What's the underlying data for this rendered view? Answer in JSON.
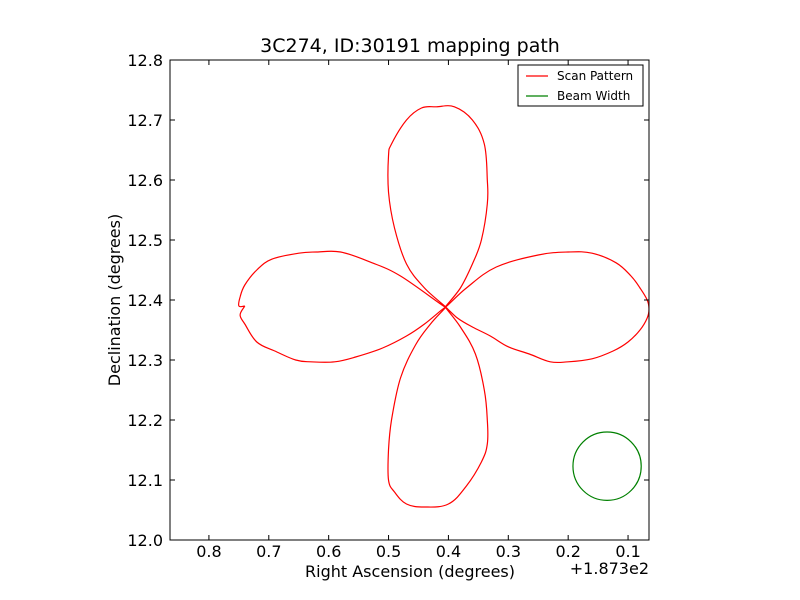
{
  "chart_data": {
    "type": "line",
    "title": "3C274, ID:30191 mapping path",
    "xlabel": "Right Ascension (degrees)",
    "ylabel": "Declination (degrees)",
    "x_offset_label": "+1.873e2",
    "xlim": [
      0.865,
      0.065
    ],
    "ylim": [
      12.0,
      12.8
    ],
    "x_ticks": [
      0.8,
      0.7,
      0.6,
      0.5,
      0.4,
      0.3,
      0.2,
      0.1
    ],
    "x_tick_labels": [
      "0.8",
      "0.7",
      "0.6",
      "0.5",
      "0.4",
      "0.3",
      "0.2",
      "0.1"
    ],
    "y_ticks": [
      12.0,
      12.1,
      12.2,
      12.3,
      12.4,
      12.5,
      12.6,
      12.7,
      12.8
    ],
    "y_tick_labels": [
      "12.0",
      "12.1",
      "12.2",
      "12.3",
      "12.4",
      "12.5",
      "12.6",
      "12.7",
      "12.8"
    ],
    "grid": false,
    "legend_position": "top-right",
    "series": [
      {
        "name": "Scan Pattern",
        "color": "#ff0000",
        "x": [
          0.74,
          0.75,
          0.748,
          0.74,
          0.72,
          0.695,
          0.65,
          0.62,
          0.58,
          0.53,
          0.48,
          0.405,
          0.44,
          0.47,
          0.49,
          0.5,
          0.5,
          0.495,
          0.47,
          0.445,
          0.42,
          0.39,
          0.36,
          0.34,
          0.335,
          0.335,
          0.345,
          0.36,
          0.38,
          0.405,
          0.37,
          0.32,
          0.25,
          0.2,
          0.16,
          0.12,
          0.095,
          0.08,
          0.068,
          0.065,
          0.068,
          0.08,
          0.1,
          0.125,
          0.16,
          0.2,
          0.23,
          0.265,
          0.3,
          0.33,
          0.36,
          0.385,
          0.405,
          0.38,
          0.355,
          0.34,
          0.335,
          0.335,
          0.345,
          0.37,
          0.4,
          0.44,
          0.47,
          0.49,
          0.5,
          0.5,
          0.495,
          0.48,
          0.455,
          0.43,
          0.405,
          0.44,
          0.47,
          0.51,
          0.555,
          0.59,
          0.63,
          0.655,
          0.69,
          0.72,
          0.74,
          0.748,
          0.74
        ],
        "y": [
          12.39,
          12.39,
          12.405,
          12.425,
          12.45,
          12.468,
          12.478,
          12.48,
          12.48,
          12.463,
          12.44,
          12.388,
          12.42,
          12.46,
          12.52,
          12.58,
          12.64,
          12.66,
          12.7,
          12.72,
          12.722,
          12.722,
          12.7,
          12.66,
          12.6,
          12.56,
          12.5,
          12.46,
          12.42,
          12.388,
          12.42,
          12.455,
          12.475,
          12.48,
          12.478,
          12.462,
          12.44,
          12.42,
          12.4,
          12.385,
          12.37,
          12.35,
          12.33,
          12.315,
          12.302,
          12.297,
          12.297,
          12.31,
          12.322,
          12.34,
          12.355,
          12.37,
          12.388,
          12.355,
          12.31,
          12.25,
          12.2,
          12.16,
          12.13,
          12.09,
          12.06,
          12.055,
          12.06,
          12.08,
          12.1,
          12.15,
          12.2,
          12.27,
          12.325,
          12.36,
          12.388,
          12.36,
          12.34,
          12.32,
          12.305,
          12.297,
          12.297,
          12.3,
          12.315,
          12.33,
          12.36,
          12.375,
          12.39
        ]
      },
      {
        "name": "Beam Width",
        "color": "#008000",
        "shape": "circle",
        "center": [
          0.135,
          12.123
        ],
        "radius": 0.057
      }
    ]
  }
}
